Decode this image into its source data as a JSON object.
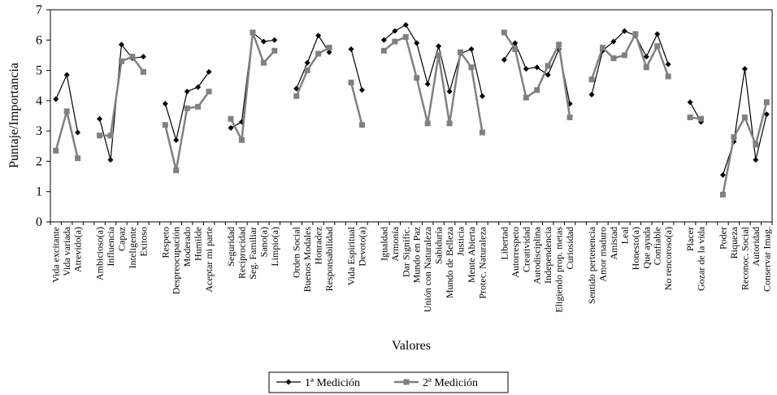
{
  "chart_data": {
    "type": "line",
    "ylabel": "Puntaje/Importancia",
    "xlabel": "Valores",
    "categories": [
      "Vida excitante",
      "Vida variada",
      "Atrevido(a)",
      null,
      "Ambicioso(a)",
      "Influencia",
      "Capaz",
      "Inteligente",
      "Exitoso",
      null,
      "Respeto",
      "Despreocupación",
      "Moderado",
      "Humilde",
      "Aceptar mi parte",
      null,
      "Seguridad",
      "Reciprocidad",
      "Seg. Familiar",
      "Sano(a)",
      "Limpio(a)",
      null,
      "Orden Social",
      "Buenos Modales",
      "Honradez",
      "Responsabilidad",
      null,
      "Vida Espiritual",
      "Devoto(a)",
      null,
      "Igualdad",
      "Armonía",
      "Dar Signific.",
      "Mundo en Paz",
      "Unión con Naturaleza",
      "Sabiduría",
      "Mundo de Belleza",
      "Justicia",
      "Mente Abierta",
      "Protec. Naturaleza",
      null,
      "Libertad",
      "Autorrespeto",
      "Creatividad",
      "Autodisciplina",
      "Independencia",
      "Eligiendo prop. metas",
      "Curiosidad",
      null,
      "Sentido pertenencia",
      "Amor maduro",
      "Amistad",
      "Leal",
      "Honesto(a)",
      "Que ayuda",
      "Confiable",
      "No rencoroso(a)",
      null,
      "Placer",
      "Gozar de la vida",
      null,
      "Poder",
      "Riqueza",
      "Reconoc. Social",
      "Autoridad",
      "Conservar Imag."
    ],
    "series": [
      {
        "name": "1ª Medición",
        "color": "#000000",
        "values": [
          4.05,
          4.85,
          2.95,
          null,
          3.4,
          2.05,
          5.85,
          5.4,
          5.45,
          null,
          3.9,
          2.7,
          4.3,
          4.45,
          4.95,
          null,
          3.1,
          3.3,
          6.25,
          5.95,
          6.0,
          null,
          4.4,
          5.25,
          6.15,
          5.6,
          null,
          5.7,
          4.35,
          null,
          6.0,
          6.3,
          6.5,
          5.9,
          4.55,
          5.8,
          4.3,
          5.55,
          5.7,
          4.15,
          null,
          5.35,
          5.9,
          5.05,
          5.1,
          4.85,
          5.7,
          3.9,
          null,
          4.2,
          5.65,
          5.95,
          6.3,
          6.15,
          5.45,
          6.2,
          5.2,
          null,
          3.95,
          3.3,
          null,
          1.55,
          2.65,
          5.05,
          2.05,
          3.55
        ]
      },
      {
        "name": "2ª Medición",
        "color": "#808080",
        "values": [
          2.35,
          3.65,
          2.1,
          null,
          2.85,
          2.85,
          5.3,
          5.45,
          4.95,
          null,
          3.2,
          1.7,
          3.75,
          3.8,
          4.3,
          null,
          3.4,
          2.7,
          6.25,
          5.25,
          5.65,
          null,
          4.15,
          5.0,
          5.55,
          5.75,
          null,
          4.6,
          3.2,
          null,
          5.65,
          5.95,
          6.1,
          4.75,
          3.25,
          5.5,
          3.25,
          5.6,
          5.1,
          2.95,
          null,
          6.25,
          5.7,
          4.1,
          4.35,
          5.15,
          5.85,
          3.45,
          null,
          4.7,
          5.75,
          5.4,
          5.5,
          6.2,
          5.1,
          5.8,
          4.8,
          null,
          3.45,
          3.4,
          null,
          0.9,
          2.8,
          3.45,
          2.55,
          3.95
        ]
      }
    ],
    "ylim": [
      0,
      7
    ],
    "yticks": [
      0,
      1,
      2,
      3,
      4,
      5,
      6,
      7
    ],
    "legend": "bottom"
  }
}
